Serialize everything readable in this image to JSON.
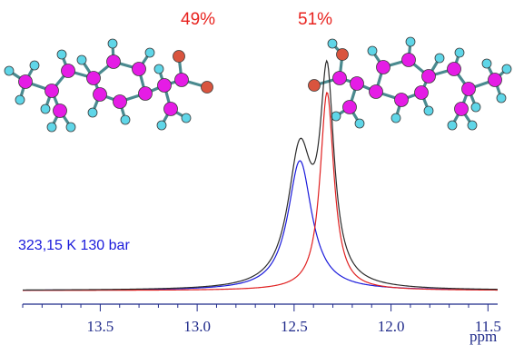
{
  "chart_data": {
    "type": "line",
    "title": "",
    "xlabel": "ppm",
    "ylabel": "",
    "xlim": [
      13.9,
      11.45
    ],
    "ylim": [
      0,
      1.0
    ],
    "x_ticks_major": [
      "13.5",
      "13.0",
      "12.5",
      "12.0",
      "11.5"
    ],
    "x_tick_values": [
      13.5,
      13.0,
      12.5,
      12.0,
      11.5
    ],
    "annotations": {
      "left_fraction": "49%",
      "right_fraction": "51%",
      "condition": "323,15 K 130 bar"
    },
    "series": [
      {
        "color": "#2b2b2b",
        "peaks": [
          {
            "center": 12.47,
            "height": 0.57,
            "width": 0.075
          },
          {
            "center": 12.33,
            "height": 0.845,
            "width": 0.043
          }
        ]
      },
      {
        "color": "#1a1adb",
        "peaks": [
          {
            "center": 12.47,
            "height": 0.55,
            "width": 0.075
          }
        ]
      },
      {
        "color": "#e02020",
        "peaks": [
          {
            "center": 12.33,
            "height": 0.84,
            "width": 0.043
          }
        ]
      }
    ],
    "colors": {
      "left_fraction": "#e8231f",
      "right_fraction": "#e8231f",
      "condition": "#1a1adb",
      "axis": "#1f2a8a"
    }
  },
  "molecules": [
    {
      "name": "left-molecule",
      "colors": {
        "carbon": "#e51ce5",
        "hydrogen": "#5fd6e8",
        "oxygen": "#d9543e",
        "bond": "#4a8a8f"
      }
    },
    {
      "name": "right-molecule",
      "colors": {
        "carbon": "#e51ce5",
        "hydrogen": "#5fd6e8",
        "oxygen": "#d9543e",
        "bond": "#4a8a8f"
      }
    }
  ]
}
